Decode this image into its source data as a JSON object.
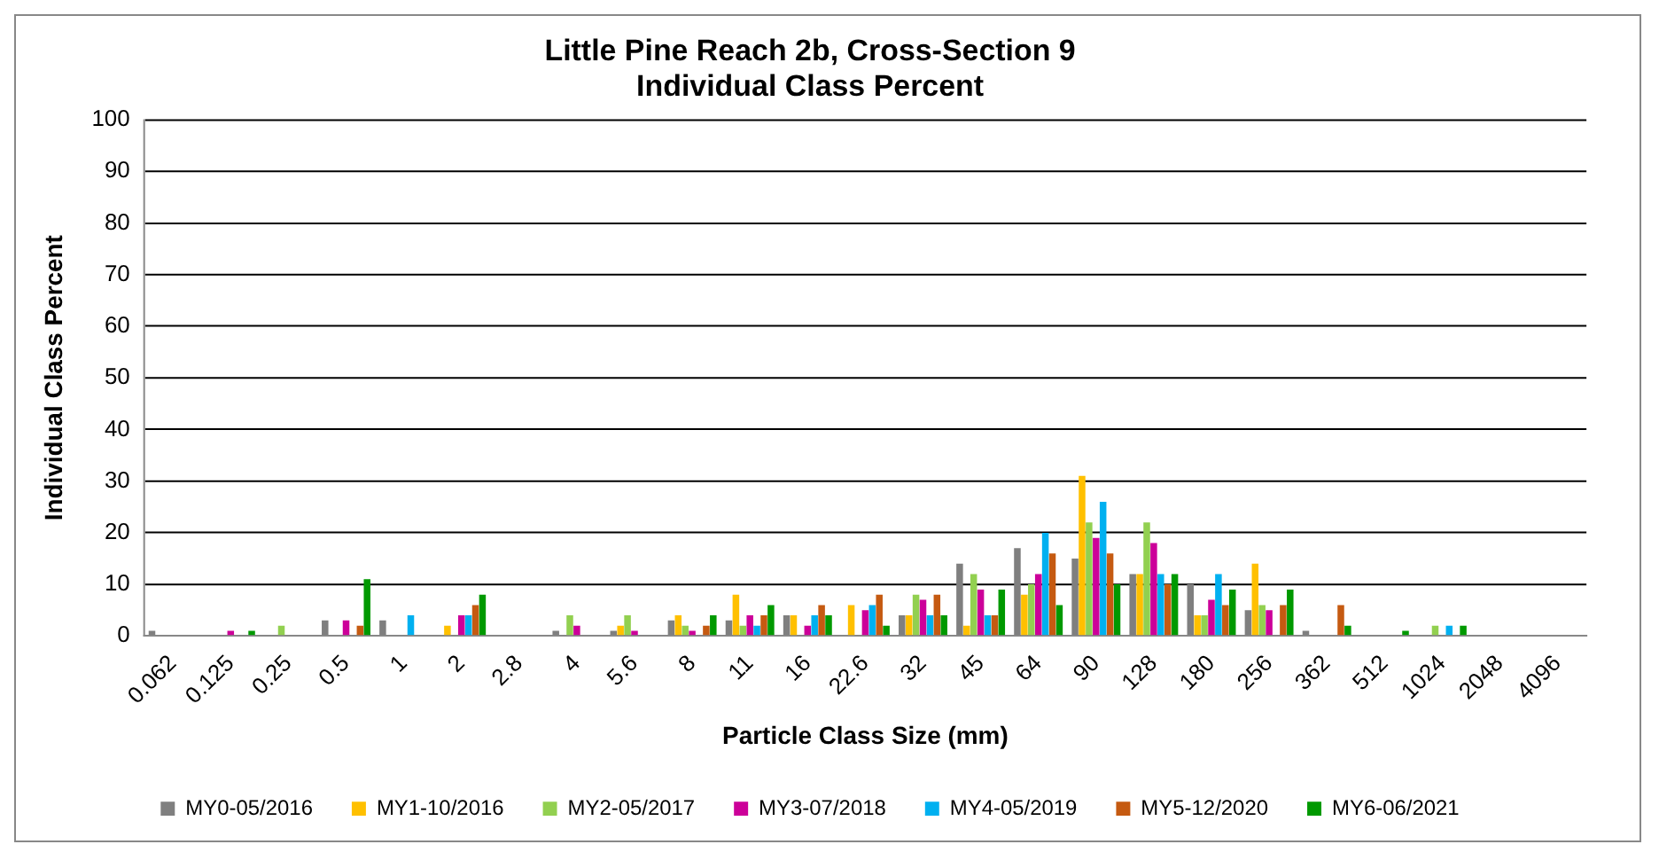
{
  "chart_data": {
    "type": "bar",
    "title": "Little Pine Reach 2b, Cross-Section 9",
    "subtitle": "Individual Class Percent",
    "xlabel": "Particle Class Size (mm)",
    "ylabel": "Individual Class Percent",
    "categories": [
      "0.062",
      "0.125",
      "0.25",
      "0.5",
      "1",
      "2",
      "2.8",
      "4",
      "5.6",
      "8",
      "11",
      "16",
      "22.6",
      "32",
      "45",
      "64",
      "90",
      "128",
      "180",
      "256",
      "362",
      "512",
      "1024",
      "2048",
      "4096"
    ],
    "series": [
      {
        "name": "MY0-05/2016",
        "color": "#7f7f7f",
        "values": [
          1,
          0,
          0,
          3,
          3,
          0,
          0,
          1,
          1,
          3,
          3,
          4,
          0,
          4,
          14,
          17,
          15,
          12,
          10,
          5,
          1,
          0,
          0,
          0,
          0
        ]
      },
      {
        "name": "MY1-10/2016",
        "color": "#ffc000",
        "values": [
          0,
          0,
          0,
          0,
          0,
          2,
          0,
          0,
          2,
          4,
          8,
          4,
          6,
          4,
          2,
          8,
          31,
          12,
          4,
          14,
          0,
          0,
          0,
          0,
          0
        ]
      },
      {
        "name": "MY2-05/2017",
        "color": "#92d050",
        "values": [
          0,
          0,
          2,
          0,
          0,
          0,
          0,
          4,
          4,
          2,
          2,
          0,
          0,
          8,
          12,
          10,
          22,
          22,
          4,
          6,
          0,
          0,
          2,
          0,
          0
        ]
      },
      {
        "name": "MY3-07/2018",
        "color": "#cc0099",
        "values": [
          0,
          1,
          0,
          3,
          0,
          4,
          0,
          2,
          1,
          1,
          4,
          2,
          5,
          7,
          9,
          12,
          19,
          18,
          7,
          5,
          0,
          0,
          0,
          0,
          0
        ]
      },
      {
        "name": "MY4-05/2019",
        "color": "#00b0f0",
        "values": [
          0,
          0,
          0,
          0,
          4,
          4,
          0,
          0,
          0,
          0,
          2,
          4,
          6,
          4,
          4,
          20,
          26,
          12,
          12,
          0,
          0,
          0,
          2,
          0,
          0
        ]
      },
      {
        "name": "MY5-12/2020",
        "color": "#c55a11",
        "values": [
          0,
          0,
          0,
          2,
          0,
          6,
          0,
          0,
          0,
          2,
          4,
          6,
          8,
          8,
          4,
          16,
          16,
          10,
          6,
          6,
          6,
          0,
          0,
          0,
          0
        ]
      },
      {
        "name": "MY6-06/2021",
        "color": "#009900",
        "values": [
          0,
          1,
          0,
          11,
          0,
          8,
          0,
          0,
          0,
          4,
          6,
          4,
          2,
          4,
          9,
          6,
          10,
          12,
          9,
          9,
          2,
          1,
          2,
          0,
          0
        ]
      }
    ],
    "ylim": [
      0,
      100
    ],
    "yticks": [
      0,
      10,
      20,
      30,
      40,
      50,
      60,
      70,
      80,
      90,
      100
    ],
    "grid": "y",
    "legend": "bottom"
  }
}
